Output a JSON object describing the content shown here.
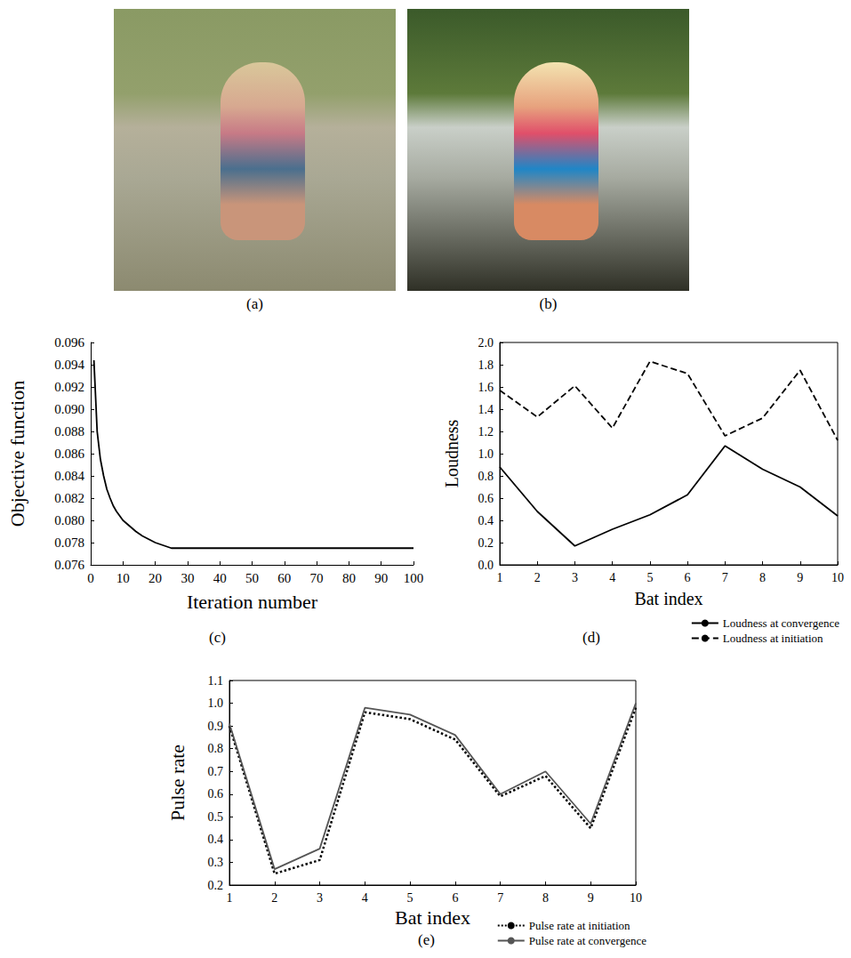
{
  "images": [
    {
      "label": "(a)"
    },
    {
      "label": "(b)"
    }
  ],
  "chart_data": [
    {
      "type": "line",
      "subtitle": "(c)",
      "xlabel": "Iteration number",
      "ylabel": "Objective function",
      "x": [
        1,
        2,
        3,
        4,
        5,
        6,
        7,
        8,
        9,
        10,
        12,
        14,
        16,
        18,
        20,
        22,
        24,
        25,
        100
      ],
      "values": [
        0.0944,
        0.088,
        0.0855,
        0.084,
        0.0828,
        0.082,
        0.0813,
        0.0808,
        0.0804,
        0.08,
        0.0795,
        0.079,
        0.0786,
        0.0783,
        0.078,
        0.0778,
        0.0776,
        0.0775,
        0.0775
      ],
      "color": "#000000",
      "line_style": "solid",
      "xlim": [
        0,
        100
      ],
      "xticks": [
        0,
        10,
        20,
        30,
        40,
        50,
        60,
        70,
        80,
        90,
        100
      ],
      "ylim": [
        0.076,
        0.096
      ],
      "yticks": [
        0.076,
        0.078,
        {
          "value": 0.08,
          "label": "0.080"
        },
        0.082,
        0.084,
        0.086,
        0.088,
        {
          "value": 0.09,
          "label": "0.090"
        },
        0.092,
        0.094,
        0.096
      ],
      "grid": false
    },
    {
      "type": "line",
      "subtitle": "(d)",
      "xlabel": "Bat index",
      "ylabel": "Loudness",
      "x": [
        1,
        2,
        3,
        4,
        5,
        6,
        7,
        8,
        9,
        10
      ],
      "series": [
        {
          "name": "Loudness at convergence",
          "color": "#000000",
          "line_style": "solid",
          "values": [
            0.88,
            0.48,
            0.17,
            0.32,
            0.45,
            0.63,
            1.07,
            0.86,
            0.7,
            0.44
          ]
        },
        {
          "name": "Loudness at initiation",
          "color": "#000000",
          "line_style": "dashed",
          "values": [
            1.57,
            1.33,
            1.61,
            1.23,
            1.83,
            1.72,
            1.16,
            1.32,
            1.75,
            1.12
          ]
        }
      ],
      "xlim": [
        1,
        10
      ],
      "xticks": [
        1,
        2,
        3,
        4,
        5,
        6,
        7,
        8,
        9,
        10
      ],
      "ylim": [
        0,
        2
      ],
      "yticks": [
        {
          "value": 0,
          "label": "0.0"
        },
        0.2,
        0.4,
        0.6,
        0.8,
        {
          "value": 1,
          "label": "1.0"
        },
        1.2,
        1.4,
        1.6,
        1.8,
        {
          "value": 2,
          "label": "2.0"
        }
      ],
      "grid": false,
      "legend": "bottom"
    },
    {
      "type": "line",
      "subtitle": "(e)",
      "xlabel": "Bat index",
      "ylabel": "Pulse rate",
      "x": [
        1,
        2,
        3,
        4,
        5,
        6,
        7,
        8,
        9,
        10
      ],
      "series": [
        {
          "name": "Pulse rate at initiation",
          "color": "#000000",
          "line_style": "dotted",
          "values": [
            0.9,
            0.25,
            0.31,
            0.96,
            0.93,
            0.84,
            0.59,
            0.68,
            0.45,
            0.98
          ]
        },
        {
          "name": "Pulse rate at convergence",
          "color": "#555555",
          "line_style": "solid",
          "values": [
            0.91,
            0.27,
            0.36,
            0.98,
            0.95,
            0.86,
            0.6,
            0.7,
            0.47,
            1
          ]
        }
      ],
      "xlim": [
        1,
        10
      ],
      "xticks": [
        1,
        2,
        3,
        4,
        5,
        6,
        7,
        8,
        9,
        10
      ],
      "ylim": [
        0.2,
        1.1
      ],
      "yticks": [
        0.2,
        0.3,
        0.4,
        0.5,
        0.6,
        0.7,
        0.8,
        0.9,
        {
          "value": 1,
          "label": "1.0"
        },
        1.1
      ],
      "grid": false,
      "legend": "bottom"
    }
  ]
}
